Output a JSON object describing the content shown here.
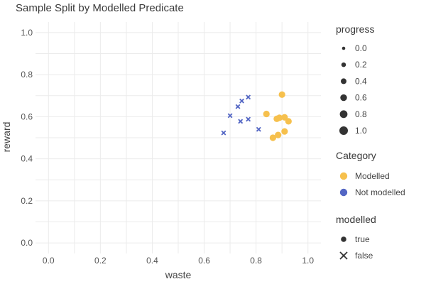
{
  "chart_data": {
    "type": "scatter",
    "title": "Sample Split by Modelled Predicate",
    "xlabel": "waste",
    "ylabel": "reward",
    "xlim": [
      -0.05,
      1.05
    ],
    "ylim": [
      -0.05,
      1.05
    ],
    "xticks": [
      "0.0",
      "0.2",
      "0.4",
      "0.6",
      "0.8",
      "1.0"
    ],
    "yticks": [
      "0.0",
      "0.2",
      "0.4",
      "0.6",
      "0.8",
      "1.0"
    ],
    "grid": true,
    "legend_position": "right",
    "colors": {
      "Modelled": "#f6c04d",
      "Not modelled": "#5366c4"
    },
    "series": [
      {
        "name": "Modelled",
        "modelled": "true",
        "marker": "circle",
        "points": [
          {
            "x": 0.9,
            "y": 0.705
          },
          {
            "x": 0.84,
            "y": 0.613
          },
          {
            "x": 0.88,
            "y": 0.59
          },
          {
            "x": 0.89,
            "y": 0.595
          },
          {
            "x": 0.91,
            "y": 0.597
          },
          {
            "x": 0.925,
            "y": 0.578
          },
          {
            "x": 0.91,
            "y": 0.53
          },
          {
            "x": 0.885,
            "y": 0.513
          },
          {
            "x": 0.865,
            "y": 0.5
          }
        ]
      },
      {
        "name": "Not modelled",
        "modelled": "false",
        "marker": "x",
        "points": [
          {
            "x": 0.77,
            "y": 0.693
          },
          {
            "x": 0.745,
            "y": 0.675
          },
          {
            "x": 0.73,
            "y": 0.648
          },
          {
            "x": 0.7,
            "y": 0.605
          },
          {
            "x": 0.77,
            "y": 0.588
          },
          {
            "x": 0.74,
            "y": 0.578
          },
          {
            "x": 0.81,
            "y": 0.54
          },
          {
            "x": 0.675,
            "y": 0.523
          }
        ]
      }
    ],
    "legends": {
      "size": {
        "title": "progress",
        "labels": [
          "0.0",
          "0.2",
          "0.4",
          "0.6",
          "0.8",
          "1.0"
        ]
      },
      "color": {
        "title": "Category",
        "labels": [
          "Modelled",
          "Not modelled"
        ]
      },
      "shape": {
        "title": "modelled",
        "labels": [
          "true",
          "false"
        ]
      }
    }
  }
}
